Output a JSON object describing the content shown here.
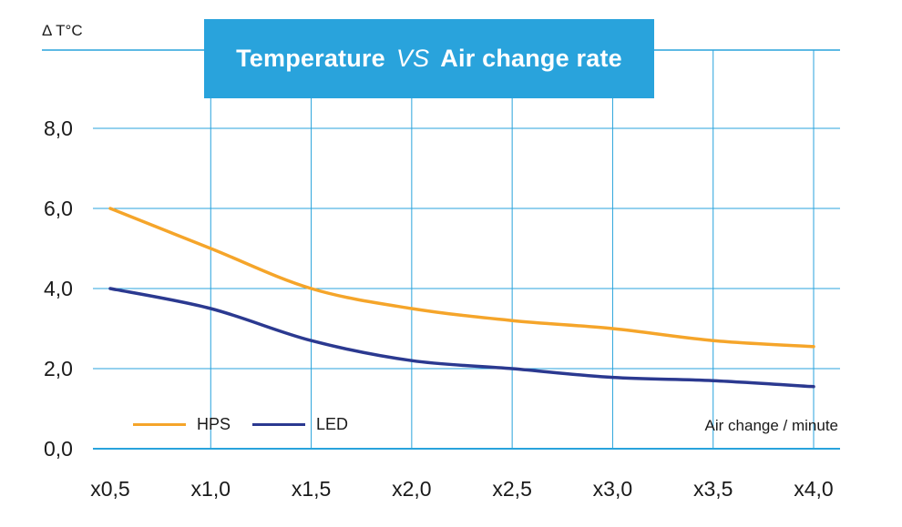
{
  "chart_data": {
    "type": "line",
    "title_parts": [
      "Temperature",
      "VS",
      "Air change rate"
    ],
    "ylabel": "Δ T°C",
    "xlabel": "Air change / minute",
    "categories": [
      "x0,5",
      "x1,0",
      "x1,5",
      "x2,0",
      "x2,5",
      "x3,0",
      "x3,5",
      "x4,0"
    ],
    "y_ticks": [
      "0,0",
      "2,0",
      "4,0",
      "6,0",
      "8,0"
    ],
    "ylim": [
      0,
      10
    ],
    "grid": true,
    "legend_position": "bottom-left",
    "series": [
      {
        "name": "HPS",
        "color": "#f5a52a",
        "values": [
          6.0,
          5.0,
          4.0,
          3.5,
          3.2,
          3.0,
          2.7,
          2.55
        ]
      },
      {
        "name": "LED",
        "color": "#2b3990",
        "values": [
          4.0,
          3.5,
          2.7,
          2.2,
          2.0,
          1.78,
          1.7,
          1.55
        ]
      }
    ],
    "colors": {
      "grid": "#29a3dc",
      "title_bg": "#29a3dc"
    }
  }
}
